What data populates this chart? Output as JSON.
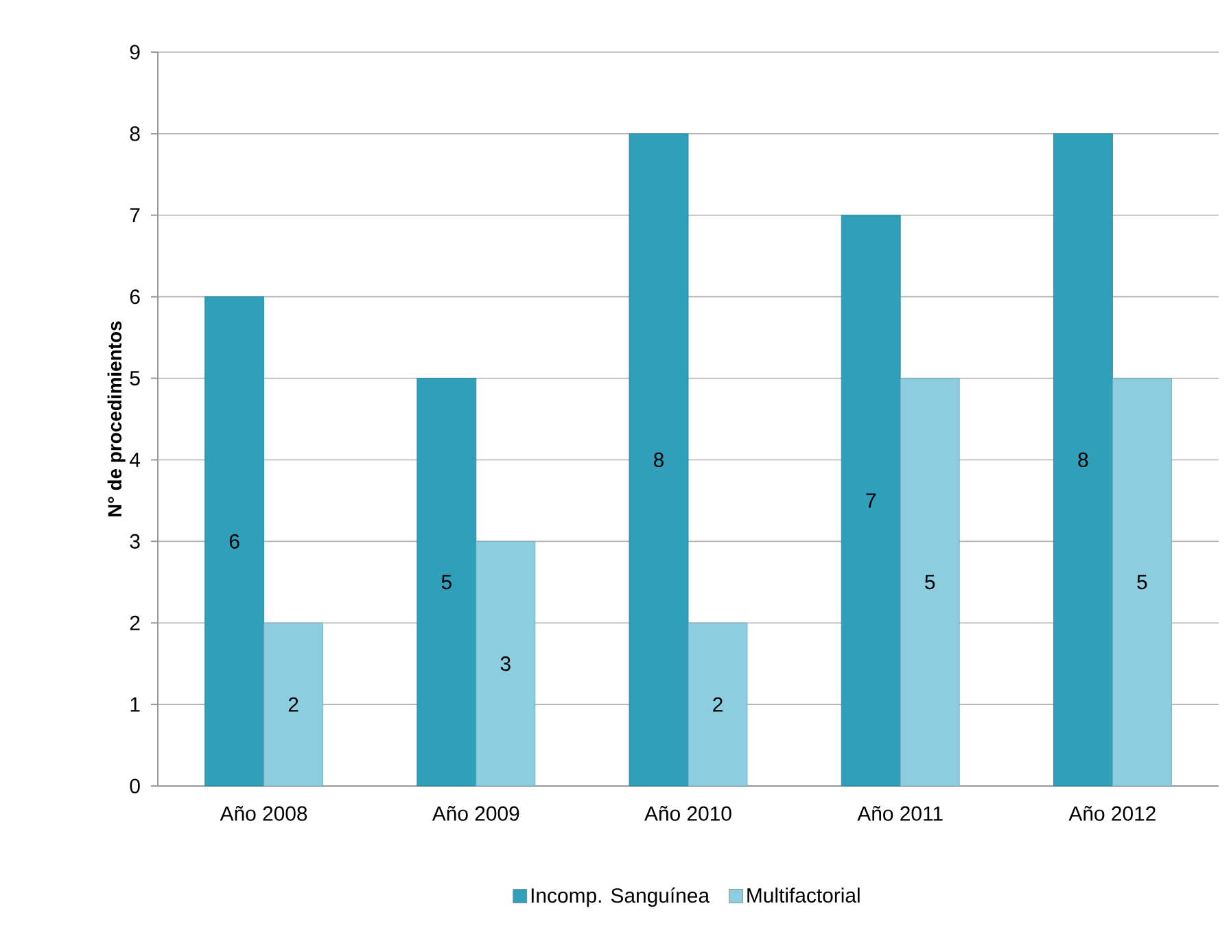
{
  "chart_data": {
    "type": "bar",
    "ylabel": "N° de procedimientos",
    "categories": [
      "Año 2008",
      "Año 2009",
      "Año 2010",
      "Año 2011",
      "Año 2012"
    ],
    "series": [
      {
        "name": "Incomp. Sanguínea",
        "color": "#2f9fba",
        "values": [
          6,
          5,
          8,
          7,
          8
        ]
      },
      {
        "name": "Multifactorial",
        "color": "#8ccde0",
        "values": [
          2,
          3,
          2,
          5,
          5
        ]
      }
    ],
    "ylim": [
      0,
      9
    ],
    "yticks": [
      0,
      1,
      2,
      3,
      4,
      5,
      6,
      7,
      8,
      9
    ],
    "grid": "y",
    "legend": "bottom",
    "data_labels": true
  }
}
